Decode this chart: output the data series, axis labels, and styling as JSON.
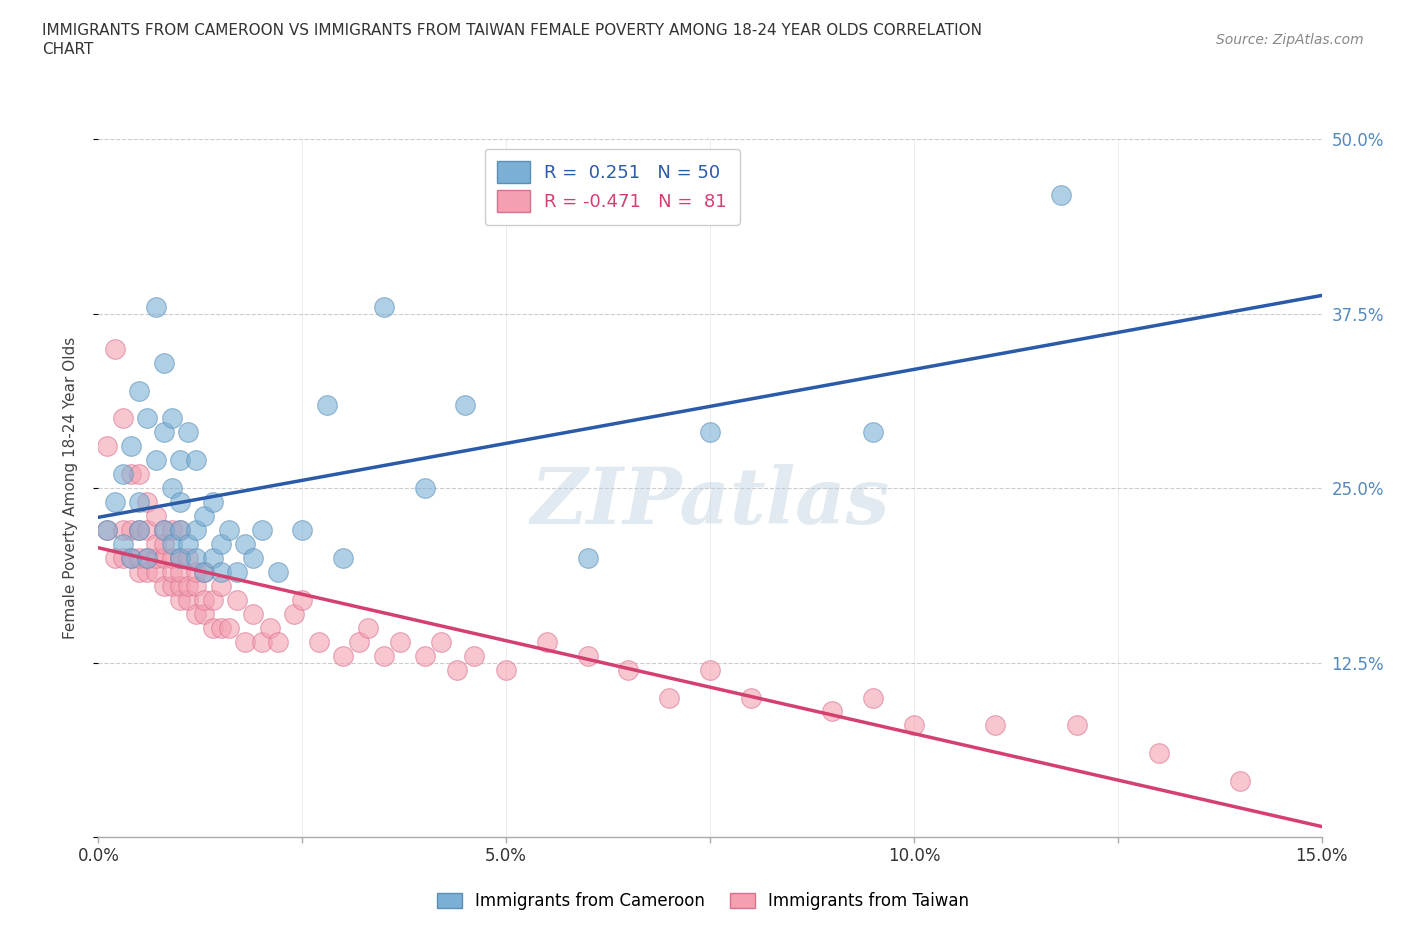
{
  "title_line1": "IMMIGRANTS FROM CAMEROON VS IMMIGRANTS FROM TAIWAN FEMALE POVERTY AMONG 18-24 YEAR OLDS CORRELATION",
  "title_line2": "CHART",
  "source": "Source: ZipAtlas.com",
  "ylabel": "Female Poverty Among 18-24 Year Olds",
  "xlim": [
    0,
    0.15
  ],
  "ylim": [
    0,
    0.5
  ],
  "yticks": [
    0.0,
    0.125,
    0.25,
    0.375,
    0.5
  ],
  "ytick_labels": [
    "",
    "12.5%",
    "25.0%",
    "37.5%",
    "50.0%"
  ],
  "xticks": [
    0.0,
    0.025,
    0.05,
    0.075,
    0.1,
    0.125,
    0.15
  ],
  "xtick_labels": [
    "0.0%",
    "",
    "5.0%",
    "",
    "10.0%",
    "",
    "15.0%"
  ],
  "xtick_labels_shown": [
    "0.0%",
    "5.0%",
    "10.0%",
    "15.0%"
  ],
  "xticks_shown": [
    0.0,
    0.05,
    0.1,
    0.15
  ],
  "cameroon_R": 0.251,
  "cameroon_N": 50,
  "taiwan_R": -0.471,
  "taiwan_N": 81,
  "blue_color": "#7BAFD4",
  "blue_edge_color": "#5A8FB8",
  "pink_color": "#F4A0B0",
  "pink_edge_color": "#D97090",
  "blue_line_color": "#2B5BA8",
  "pink_line_color": "#D44070",
  "watermark": "ZIPatlas",
  "background_color": "#FFFFFF",
  "grid_color": "#CCCCCC",
  "right_axis_color": "#5588BB",
  "cameroon_x": [
    0.001,
    0.002,
    0.003,
    0.003,
    0.004,
    0.004,
    0.005,
    0.005,
    0.005,
    0.006,
    0.006,
    0.007,
    0.007,
    0.008,
    0.008,
    0.008,
    0.009,
    0.009,
    0.009,
    0.01,
    0.01,
    0.01,
    0.01,
    0.011,
    0.011,
    0.012,
    0.012,
    0.012,
    0.013,
    0.013,
    0.014,
    0.014,
    0.015,
    0.015,
    0.016,
    0.017,
    0.018,
    0.019,
    0.02,
    0.022,
    0.025,
    0.028,
    0.03,
    0.035,
    0.04,
    0.045,
    0.06,
    0.075,
    0.095,
    0.118
  ],
  "cameroon_y": [
    0.22,
    0.24,
    0.21,
    0.26,
    0.2,
    0.28,
    0.22,
    0.24,
    0.32,
    0.2,
    0.3,
    0.27,
    0.38,
    0.22,
    0.29,
    0.34,
    0.21,
    0.25,
    0.3,
    0.2,
    0.22,
    0.24,
    0.27,
    0.21,
    0.29,
    0.2,
    0.22,
    0.27,
    0.19,
    0.23,
    0.2,
    0.24,
    0.19,
    0.21,
    0.22,
    0.19,
    0.21,
    0.2,
    0.22,
    0.19,
    0.22,
    0.31,
    0.2,
    0.38,
    0.25,
    0.31,
    0.2,
    0.29,
    0.29,
    0.46
  ],
  "taiwan_x": [
    0.001,
    0.001,
    0.002,
    0.002,
    0.003,
    0.003,
    0.003,
    0.004,
    0.004,
    0.004,
    0.005,
    0.005,
    0.005,
    0.005,
    0.006,
    0.006,
    0.006,
    0.006,
    0.007,
    0.007,
    0.007,
    0.007,
    0.008,
    0.008,
    0.008,
    0.008,
    0.009,
    0.009,
    0.009,
    0.009,
    0.01,
    0.01,
    0.01,
    0.01,
    0.01,
    0.011,
    0.011,
    0.011,
    0.012,
    0.012,
    0.012,
    0.013,
    0.013,
    0.013,
    0.014,
    0.014,
    0.015,
    0.015,
    0.016,
    0.017,
    0.018,
    0.019,
    0.02,
    0.021,
    0.022,
    0.024,
    0.025,
    0.027,
    0.03,
    0.032,
    0.033,
    0.035,
    0.037,
    0.04,
    0.042,
    0.044,
    0.046,
    0.05,
    0.055,
    0.06,
    0.065,
    0.07,
    0.075,
    0.08,
    0.09,
    0.095,
    0.1,
    0.11,
    0.12,
    0.13,
    0.14
  ],
  "taiwan_y": [
    0.22,
    0.28,
    0.2,
    0.35,
    0.2,
    0.22,
    0.3,
    0.2,
    0.22,
    0.26,
    0.19,
    0.2,
    0.22,
    0.26,
    0.19,
    0.2,
    0.22,
    0.24,
    0.19,
    0.2,
    0.21,
    0.23,
    0.18,
    0.2,
    0.21,
    0.22,
    0.18,
    0.19,
    0.2,
    0.22,
    0.17,
    0.18,
    0.19,
    0.2,
    0.22,
    0.17,
    0.18,
    0.2,
    0.16,
    0.18,
    0.19,
    0.16,
    0.17,
    0.19,
    0.15,
    0.17,
    0.15,
    0.18,
    0.15,
    0.17,
    0.14,
    0.16,
    0.14,
    0.15,
    0.14,
    0.16,
    0.17,
    0.14,
    0.13,
    0.14,
    0.15,
    0.13,
    0.14,
    0.13,
    0.14,
    0.12,
    0.13,
    0.12,
    0.14,
    0.13,
    0.12,
    0.1,
    0.12,
    0.1,
    0.09,
    0.1,
    0.08,
    0.08,
    0.08,
    0.06,
    0.04
  ]
}
